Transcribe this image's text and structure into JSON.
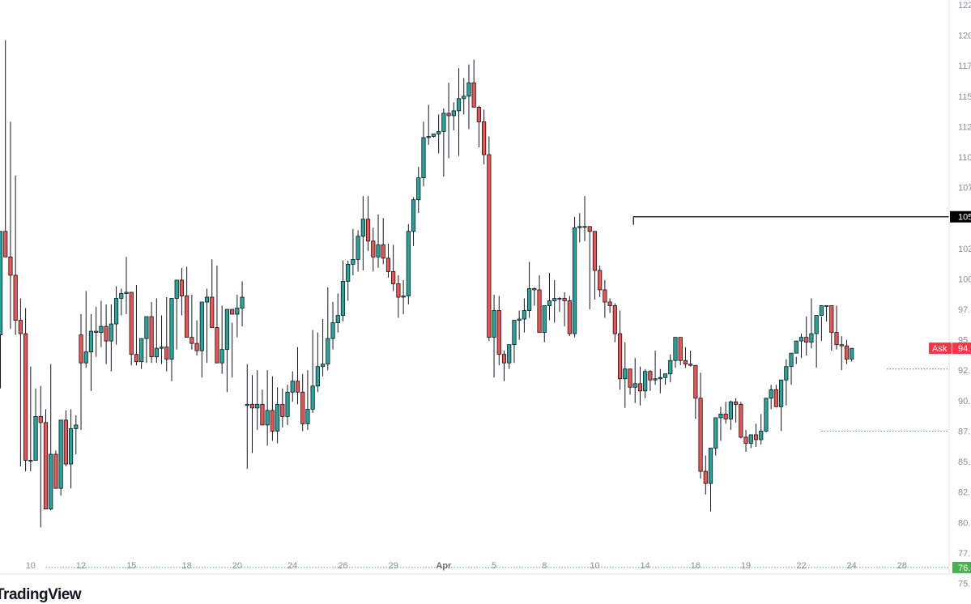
{
  "chart_data": {
    "type": "candlestick",
    "colors": {
      "up": "#26a69a",
      "down": "#ef5350",
      "ask": "#f23645",
      "support": "#4caf50",
      "level": "#000000"
    },
    "y_axis": {
      "ylim": [
        73.9,
        122.9
      ],
      "tick_labels": [
        "122.",
        "120.",
        "117.",
        "115.",
        "112.",
        "110.",
        "107.",
        "105.",
        "102.",
        "100.",
        "97.",
        "95.",
        "92.",
        "90.",
        "87.",
        "85.",
        "82.",
        "80.",
        "77.",
        "75."
      ],
      "tick_values": [
        122.5,
        120,
        117.5,
        115,
        112.5,
        110,
        107.5,
        105,
        102.5,
        100,
        97.5,
        95,
        92.5,
        90,
        87.5,
        85,
        82.5,
        80,
        77.5,
        75
      ]
    },
    "x_axis": {
      "tick_labels": [
        "10",
        "12",
        "15",
        "18",
        "20",
        "24",
        "26",
        "29",
        "Apr",
        "5",
        "8",
        "10",
        "14",
        "16",
        "19",
        "22",
        "24",
        "28"
      ],
      "tick_indices": [
        6,
        16,
        26,
        37,
        47,
        58,
        68,
        78,
        88,
        98,
        108,
        118,
        128,
        138,
        148,
        159,
        169,
        179
      ],
      "bold": [
        "Apr"
      ]
    },
    "price_labels": {
      "level_label": "105",
      "level_value": 105.1,
      "ask_text": "Ask",
      "ask_value_label": "94.",
      "ask_value": 94.3,
      "support_label": "76.",
      "support_value": 76.3
    },
    "level_line_start_index": 126,
    "dotted_levels": [
      {
        "value": 92.6,
        "from_index": 176
      },
      {
        "value": 87.5,
        "from_index": 163
      },
      {
        "value": 76.3,
        "from_index": 9
      }
    ],
    "candles": {
      "open": [
        95.4,
        103.9,
        101.8,
        100.3,
        96.6,
        95.5,
        85.1,
        85.1,
        88.7,
        88.2,
        81.1,
        85.6,
        82.8,
        88.4,
        84.8,
        87.7,
        95.4,
        93.1,
        94.0,
        95.7,
        95.6,
        96.1,
        94.9,
        96.3,
        98.4,
        98.8,
        98.9,
        93.8,
        93.2,
        95.1,
        96.9,
        93.6,
        94.3,
        94.4,
        93.4,
        98.4,
        99.9,
        98.6,
        95.2,
        94.7,
        94.1,
        98.1,
        98.5,
        96.0,
        93.1,
        94.2,
        97.5,
        97.1,
        97.6,
        89.6,
        89.7,
        89.4,
        89.7,
        88.0,
        89.2,
        87.5,
        89.7,
        88.7,
        90.7,
        91.6,
        90.7,
        88.1,
        89.3,
        91.2,
        92.8,
        93.0,
        95.1,
        96.4,
        97.0,
        99.8,
        101.2,
        101.6,
        103.5,
        104.9,
        103.1,
        101.8,
        102.8,
        101.7,
        100.6,
        99.6,
        98.5,
        98.6,
        103.9,
        106.5,
        108.3,
        111.6,
        111.7,
        111.9,
        112.1,
        113.6,
        113.4,
        113.8,
        114.8,
        115.0,
        116.1,
        114.1,
        112.9,
        110.2,
        95.2,
        97.4,
        93.8,
        93.1,
        94.6,
        96.6,
        96.7,
        97.4,
        99.2,
        99.1,
        95.6,
        97.8,
        98.2,
        98.4,
        98.4,
        98.2,
        95.5,
        104.2,
        104.3,
        104.3,
        103.9,
        100.7,
        99.1,
        98.1,
        97.8,
        95.5,
        91.8,
        92.6,
        91.1,
        91.4,
        90.8,
        92.4,
        91.7,
        91.8,
        91.9,
        92.2,
        93.3,
        95.2,
        93.3,
        93.0,
        92.9,
        90.2,
        84.2,
        83.2,
        86.1,
        88.6,
        88.9,
        88.5,
        89.9,
        89.7,
        87.0,
        86.5,
        87.2,
        86.8,
        87.5,
        90.2,
        90.9,
        89.5,
        91.7,
        92.8,
        93.9,
        94.9,
        95.2,
        94.8,
        95.5,
        97.0,
        97.8,
        97.8,
        95.6,
        94.6,
        94.5,
        93.4
      ],
      "high": [
        101.4,
        119.6,
        112.9,
        108.5,
        98.4,
        97.6,
        92.8,
        91.0,
        91.2,
        89.3,
        93.0,
        85.9,
        86.2,
        89.2,
        89.3,
        88.8,
        97.1,
        99.0,
        97.1,
        97.7,
        98.2,
        97.9,
        97.9,
        99.4,
        99.2,
        101.8,
        98.5,
        99.5,
        94.7,
        96.3,
        98.1,
        98.4,
        97.0,
        98.5,
        96.2,
        99.0,
        100.9,
        101.0,
        98.7,
        96.6,
        95.6,
        99.2,
        101.6,
        101.1,
        97.8,
        95.7,
        96.4,
        98.7,
        99.8,
        93.0,
        92.1,
        92.5,
        90.9,
        92.5,
        92.0,
        91.1,
        91.0,
        91.3,
        92.4,
        94.4,
        92.2,
        92.5,
        95.8,
        95.6,
        96.7,
        99.3,
        98.1,
        98.8,
        101.5,
        101.5,
        104.1,
        104.0,
        106.8,
        106.8,
        104.2,
        105.3,
        105.0,
        102.9,
        102.8,
        100.3,
        99.9,
        104.5,
        106.7,
        109.2,
        112.9,
        114.3,
        111.9,
        113.5,
        114.0,
        116.1,
        114.5,
        117.3,
        116.5,
        117.6,
        118.0,
        114.2,
        113.9,
        111.7,
        98.7,
        98.6,
        94.1,
        93.9,
        96.0,
        97.4,
        98.4,
        101.4,
        99.3,
        100.3,
        96.6,
        100.5,
        99.9,
        98.5,
        98.9,
        98.6,
        105.1,
        105.4,
        106.8,
        104.2,
        103.0,
        101.1,
        99.9,
        98.4,
        98.0,
        97.4,
        94.8,
        92.6,
        93.5,
        92.8,
        92.6,
        92.5,
        94.1,
        92.6,
        92.2,
        93.8,
        95.1,
        95.1,
        94.4,
        94.1,
        92.9,
        92.3,
        85.5,
        85.2,
        86.6,
        89.5,
        89.9,
        90.0,
        90.2,
        89.9,
        87.6,
        86.9,
        88.1,
        88.9,
        89.9,
        91.3,
        91.3,
        90.1,
        93.4,
        93.6,
        93.6,
        95.5,
        96.9,
        98.4,
        96.5,
        96.9,
        97.8,
        97.8,
        97.8,
        95.3,
        95.0,
        94.0
      ],
      "low": [
        91.0,
        103.3,
        95.9,
        95.4,
        84.6,
        84.2,
        84.2,
        87.1,
        79.6,
        83.9,
        81.0,
        82.8,
        82.2,
        84.6,
        82.8,
        85.6,
        87.6,
        92.7,
        90.8,
        93.6,
        94.4,
        93.0,
        92.4,
        94.6,
        97.0,
        97.1,
        92.9,
        92.9,
        92.6,
        93.1,
        93.1,
        93.1,
        93.0,
        92.4,
        91.6,
        94.2,
        97.0,
        97.2,
        94.2,
        93.7,
        91.9,
        93.1,
        97.0,
        94.5,
        92.2,
        90.7,
        91.9,
        95.2,
        96.1,
        84.4,
        85.7,
        87.6,
        88.7,
        86.3,
        86.7,
        86.5,
        87.8,
        88.0,
        89.9,
        89.7,
        87.5,
        87.6,
        89.0,
        90.7,
        92.0,
        92.5,
        94.2,
        95.6,
        96.5,
        98.2,
        100.3,
        100.6,
        100.7,
        102.3,
        100.6,
        100.9,
        101.2,
        100.1,
        99.0,
        96.8,
        97.1,
        97.9,
        102.7,
        105.4,
        107.6,
        111.0,
        111.6,
        110.3,
        108.4,
        109.9,
        112.2,
        110.1,
        113.5,
        112.3,
        114.6,
        110.8,
        109.4,
        94.9,
        91.9,
        92.9,
        91.6,
        92.6,
        93.1,
        95.0,
        95.6,
        96.8,
        97.8,
        96.3,
        94.8,
        96.6,
        96.4,
        97.3,
        96.1,
        95.3,
        95.2,
        103.0,
        103.1,
        97.5,
        98.3,
        98.5,
        96.8,
        97.2,
        94.8,
        90.9,
        89.4,
        90.5,
        89.8,
        89.6,
        90.2,
        90.8,
        91.3,
        90.6,
        91.3,
        91.5,
        92.7,
        92.9,
        92.7,
        92.8,
        88.5,
        83.6,
        82.3,
        80.9,
        85.5,
        86.7,
        88.1,
        87.6,
        88.2,
        86.9,
        85.8,
        86.1,
        86.2,
        86.4,
        87.4,
        89.3,
        89.5,
        87.5,
        89.6,
        91.3,
        93.0,
        93.5,
        93.7,
        94.3,
        92.7,
        94.9,
        96.5,
        94.1,
        94.2,
        92.5,
        93.0,
        93.2
      ],
      "close": [
        103.9,
        101.8,
        100.3,
        96.6,
        95.5,
        85.1,
        85.1,
        88.7,
        88.2,
        81.1,
        85.6,
        82.8,
        88.4,
        84.8,
        87.7,
        88.0,
        93.1,
        94.0,
        95.7,
        95.6,
        96.1,
        94.9,
        96.3,
        98.4,
        98.8,
        98.9,
        93.8,
        93.2,
        95.1,
        96.9,
        93.6,
        94.3,
        94.4,
        93.4,
        98.4,
        99.9,
        98.6,
        95.2,
        94.7,
        94.1,
        98.1,
        98.5,
        96.0,
        93.1,
        94.2,
        97.5,
        97.1,
        97.6,
        98.5,
        89.7,
        89.4,
        89.7,
        88.0,
        89.2,
        87.5,
        89.7,
        88.7,
        90.7,
        91.6,
        90.7,
        88.1,
        89.3,
        91.2,
        92.8,
        93.0,
        95.1,
        96.4,
        97.0,
        99.8,
        101.2,
        101.6,
        103.5,
        104.9,
        103.1,
        101.8,
        102.8,
        101.7,
        100.6,
        99.6,
        98.5,
        98.6,
        103.9,
        106.5,
        108.3,
        111.6,
        111.7,
        111.9,
        112.1,
        113.6,
        113.4,
        113.8,
        114.8,
        115.0,
        116.1,
        114.1,
        112.9,
        110.2,
        95.2,
        97.4,
        93.8,
        93.1,
        94.6,
        96.6,
        96.7,
        97.4,
        99.2,
        99.1,
        95.6,
        97.8,
        98.2,
        98.4,
        98.4,
        98.2,
        95.5,
        104.2,
        104.3,
        104.3,
        103.9,
        100.7,
        99.1,
        98.1,
        97.8,
        95.5,
        91.8,
        92.6,
        91.1,
        91.4,
        90.8,
        92.4,
        91.7,
        91.8,
        91.9,
        92.2,
        93.3,
        95.2,
        93.3,
        93.0,
        92.9,
        90.2,
        84.2,
        83.2,
        86.1,
        88.6,
        88.9,
        88.5,
        89.9,
        89.7,
        87.0,
        86.5,
        87.2,
        86.8,
        87.5,
        90.2,
        90.9,
        89.5,
        91.7,
        92.8,
        93.9,
        94.9,
        95.2,
        94.8,
        95.5,
        97.0,
        97.8,
        97.8,
        95.6,
        94.6,
        94.5,
        93.4,
        94.3
      ]
    }
  },
  "watermark": {
    "text": "TradingView"
  }
}
